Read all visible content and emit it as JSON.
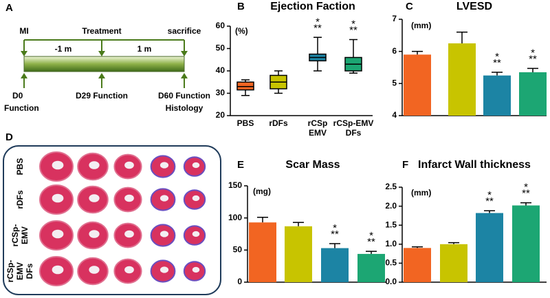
{
  "panel_labels": {
    "A": "A",
    "D": "D"
  },
  "timeline": {
    "top": [
      "MI",
      "Treatment",
      "sacrifice"
    ],
    "intervals": [
      "-1 m",
      "1 m"
    ],
    "bottom": [
      [
        "D0",
        "Function"
      ],
      [
        "D29 Function"
      ],
      [
        "D60 Function",
        "Histology"
      ]
    ]
  },
  "histology": {
    "rows": [
      [
        "PBS"
      ],
      [
        "rDFs"
      ],
      [
        "rCSp-",
        "EMV"
      ],
      [
        "rCSp-",
        "EMV",
        "DFs"
      ]
    ]
  },
  "chart_data": [
    {
      "type": "box",
      "panel": "B",
      "title": "Ejection Faction",
      "unit": "(%)",
      "categories": [
        "PBS",
        "rDFs",
        "rCSp EMV",
        "rCSp-EMV DFs"
      ],
      "colors": [
        "#f26522",
        "#c8c400",
        "#1c84a4",
        "#1ca673"
      ],
      "min": [
        29,
        30,
        40,
        39
      ],
      "q1": [
        31.5,
        32,
        44.5,
        40
      ],
      "median": [
        33,
        35,
        46,
        43
      ],
      "q3": [
        35,
        38,
        47.5,
        46
      ],
      "max": [
        36,
        40,
        55,
        54
      ],
      "significance": [
        null,
        null,
        "*\n**",
        "*\n**"
      ],
      "ylim": [
        20,
        60
      ],
      "yticks": [
        20,
        30,
        40,
        50,
        60
      ]
    },
    {
      "type": "bar",
      "panel": "C",
      "title": "LVESD",
      "unit": "(mm)",
      "categories": [
        null,
        null,
        null,
        null
      ],
      "colors": [
        "#f26522",
        "#c8c400",
        "#1c84a4",
        "#1ca673"
      ],
      "values": [
        5.9,
        6.25,
        5.25,
        5.35
      ],
      "errors": [
        0.1,
        0.35,
        0.1,
        0.12
      ],
      "significance": [
        null,
        null,
        "*\n**",
        "*\n**"
      ],
      "ylim": [
        4,
        7
      ],
      "yticks": [
        4,
        5,
        6,
        7
      ]
    },
    {
      "type": "bar",
      "panel": "E",
      "title": "Scar Mass",
      "unit": "(mg)",
      "categories": [
        null,
        null,
        null,
        null
      ],
      "colors": [
        "#f26522",
        "#c8c400",
        "#1c84a4",
        "#1ca673"
      ],
      "values": [
        93,
        87,
        53,
        44
      ],
      "errors": [
        8,
        6,
        7,
        4
      ],
      "significance": [
        null,
        null,
        "*\n**",
        "*\n**"
      ],
      "ylim": [
        0,
        150
      ],
      "yticks": [
        0,
        50,
        100,
        150
      ]
    },
    {
      "type": "bar",
      "panel": "F",
      "title": "Infarct Wall thickness",
      "unit": "(mm)",
      "categories": [
        null,
        null,
        null,
        null
      ],
      "colors": [
        "#f26522",
        "#c8c400",
        "#1c84a4",
        "#1ca673"
      ],
      "values": [
        0.9,
        1.0,
        1.82,
        2.02
      ],
      "errors": [
        0.03,
        0.04,
        0.06,
        0.07
      ],
      "significance": [
        null,
        null,
        "*\n**",
        "*\n**"
      ],
      "ylim": [
        0,
        2.5
      ],
      "yticks": [
        {
          "value": 0,
          "label": "0.0"
        },
        0.5,
        {
          "value": 1,
          "label": "1.0"
        },
        1.5,
        {
          "value": 2,
          "label": "2.0"
        },
        2.5
      ]
    }
  ]
}
